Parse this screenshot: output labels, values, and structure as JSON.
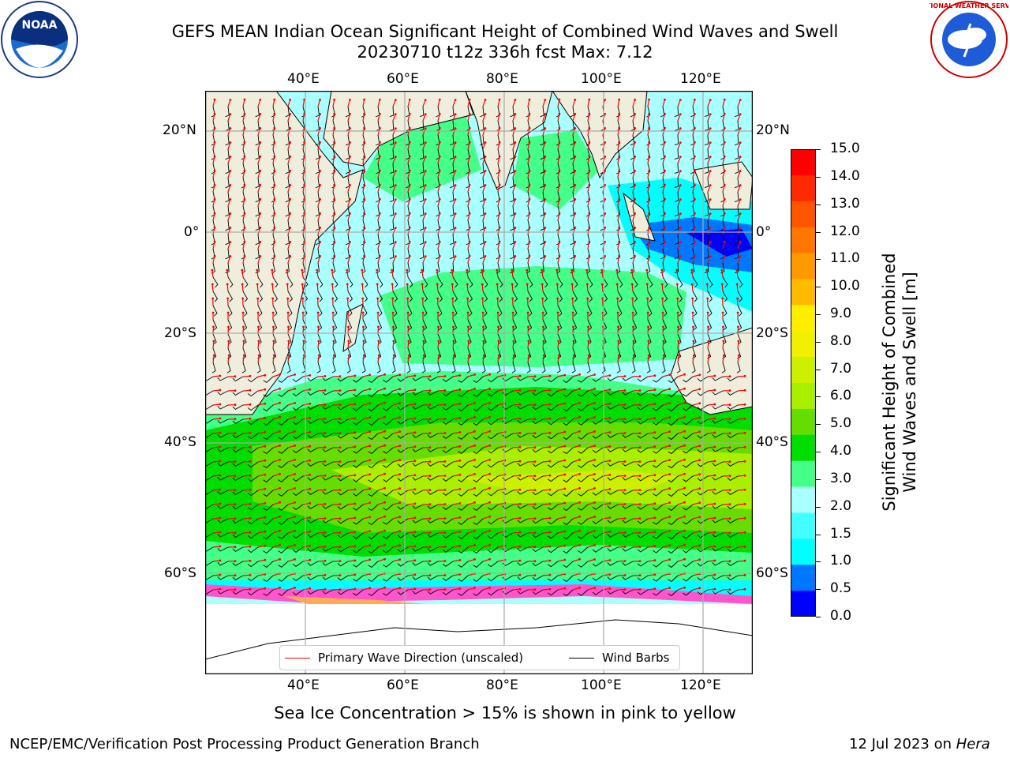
{
  "header": {
    "title_line1": "GEFS MEAN Indian Ocean Significant Height of Combined Wind Waves and Swell",
    "title_line2": "20230710 t12z 336h fcst   Max: 7.12",
    "left_logo_text": "NOAA",
    "right_logo_text": "NATIONAL WEATHER SERVICE"
  },
  "map": {
    "top_lon_labels": [
      "40°E",
      "60°E",
      "80°E",
      "100°E",
      "120°E"
    ],
    "bottom_lon_labels": [
      "40°E",
      "60°E",
      "80°E",
      "100°E",
      "120°E"
    ],
    "left_lat_labels": [
      "20°N",
      "0°",
      "20°S",
      "40°S",
      "60°S"
    ],
    "right_lat_labels": [
      "20°N",
      "0°",
      "20°S",
      "40°S",
      "60°S"
    ],
    "ice_label": "Sea Ice Concentration > 15% is shown in pink to yellow"
  },
  "legend": {
    "wave_direction": "Primary Wave Direction (unscaled)",
    "wind_barbs": "Wind Barbs",
    "wave_color": "#ff0000",
    "barb_color": "#000000"
  },
  "colorbar": {
    "label_line1": "Significant Height of Combined",
    "label_line2": "Wind Waves and Swell [m]",
    "ticks": [
      "15.0",
      "14.0",
      "13.0",
      "12.0",
      "11.0",
      "10.0",
      "9.0",
      "8.0",
      "7.0",
      "6.0",
      "5.0",
      "4.0",
      "3.0",
      "2.0",
      "1.5",
      "1.0",
      "0.5",
      "0.0"
    ],
    "colors_top_to_bottom": [
      "#ff0000",
      "#ff2a00",
      "#ff5500",
      "#ff7700",
      "#ff9900",
      "#ffbb00",
      "#ffee00",
      "#f0f000",
      "#ccf000",
      "#aaee00",
      "#66dd00",
      "#00dd00",
      "#44ff88",
      "#aaffff",
      "#44ffff",
      "#00ffff",
      "#0077ff",
      "#0000ff"
    ]
  },
  "footer": {
    "left": "NCEP/EMC/Verification Post Processing Product Generation Branch",
    "right_date": "12 Jul 2023 on",
    "right_host": "Hera"
  }
}
